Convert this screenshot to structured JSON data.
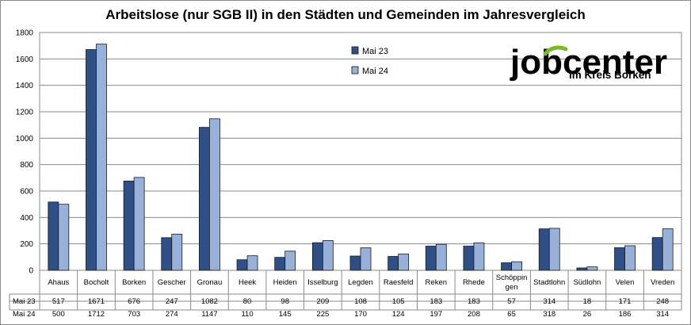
{
  "chart_data": {
    "type": "bar",
    "title": "Arbeitslose (nur SGB II) in den Städten und Gemeinden im Jahresvergleich",
    "categories": [
      "Ahaus",
      "Bocholt",
      "Borken",
      "Gescher",
      "Gronau",
      "Heek",
      "Heiden",
      "Isselburg",
      "Legden",
      "Raesfeld",
      "Reken",
      "Rhede",
      "Schöppin gen",
      "Stadtlohn",
      "Südlohn",
      "Velen",
      "Vreden"
    ],
    "series": [
      {
        "name": "Mai 23",
        "color": "#2f4f87",
        "values": [
          517,
          1671,
          676,
          247,
          1082,
          80,
          98,
          209,
          108,
          105,
          183,
          183,
          57,
          314,
          18,
          171,
          248
        ]
      },
      {
        "name": "Mai 24",
        "color": "#98b1d8",
        "values": [
          500,
          1712,
          703,
          274,
          1147,
          110,
          145,
          225,
          170,
          124,
          197,
          208,
          65,
          318,
          26,
          186,
          314
        ]
      }
    ],
    "ylim": [
      0,
      1800
    ],
    "yticks": [
      "0",
      "200",
      "400",
      "600",
      "800",
      "1000",
      "1200",
      "1400",
      "1600",
      "1800"
    ],
    "grid": true,
    "legend_position": "top-center",
    "data_table": true
  },
  "logo": {
    "line1": "jobcenter",
    "line2": "im Kreis Borken",
    "accent_color": "#7ab929"
  }
}
